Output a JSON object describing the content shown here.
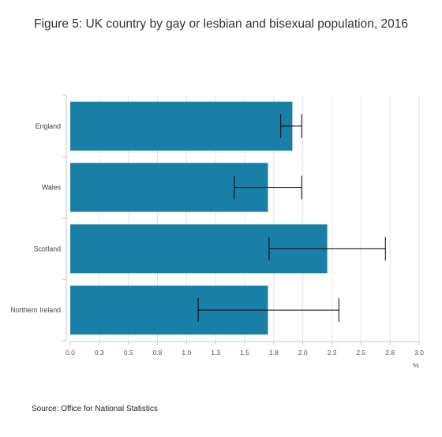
{
  "chart_data": {
    "type": "bar",
    "orientation": "horizontal",
    "title": "Figure 5: UK country by gay or lesbian and bisexual population, 2016",
    "source": "Source: Office for National Statistics",
    "xlabel": "%",
    "ylabel": "",
    "xlim": [
      0,
      3.0
    ],
    "grid": true,
    "x_ticks": [
      "0.0",
      "0.3",
      "0.5",
      "0.8",
      "1.0",
      "1.3",
      "1.5",
      "1.8",
      "2.0",
      "2.3",
      "2.5",
      "2.8",
      "3.0"
    ],
    "x_tick_values": [
      0,
      0.25,
      0.5,
      0.75,
      1.0,
      1.25,
      1.5,
      1.75,
      2.0,
      2.25,
      2.5,
      2.75,
      3.0
    ],
    "categories": [
      "England",
      "Wales",
      "Scotland",
      "Northern Ireland"
    ],
    "values": [
      1.91,
      1.7,
      2.21,
      1.7
    ],
    "error_low": [
      1.81,
      1.41,
      1.71,
      1.1
    ],
    "error_high": [
      1.99,
      1.99,
      2.71,
      2.31
    ],
    "bar_color": "#1a7fa6",
    "error_color": "#000000"
  }
}
